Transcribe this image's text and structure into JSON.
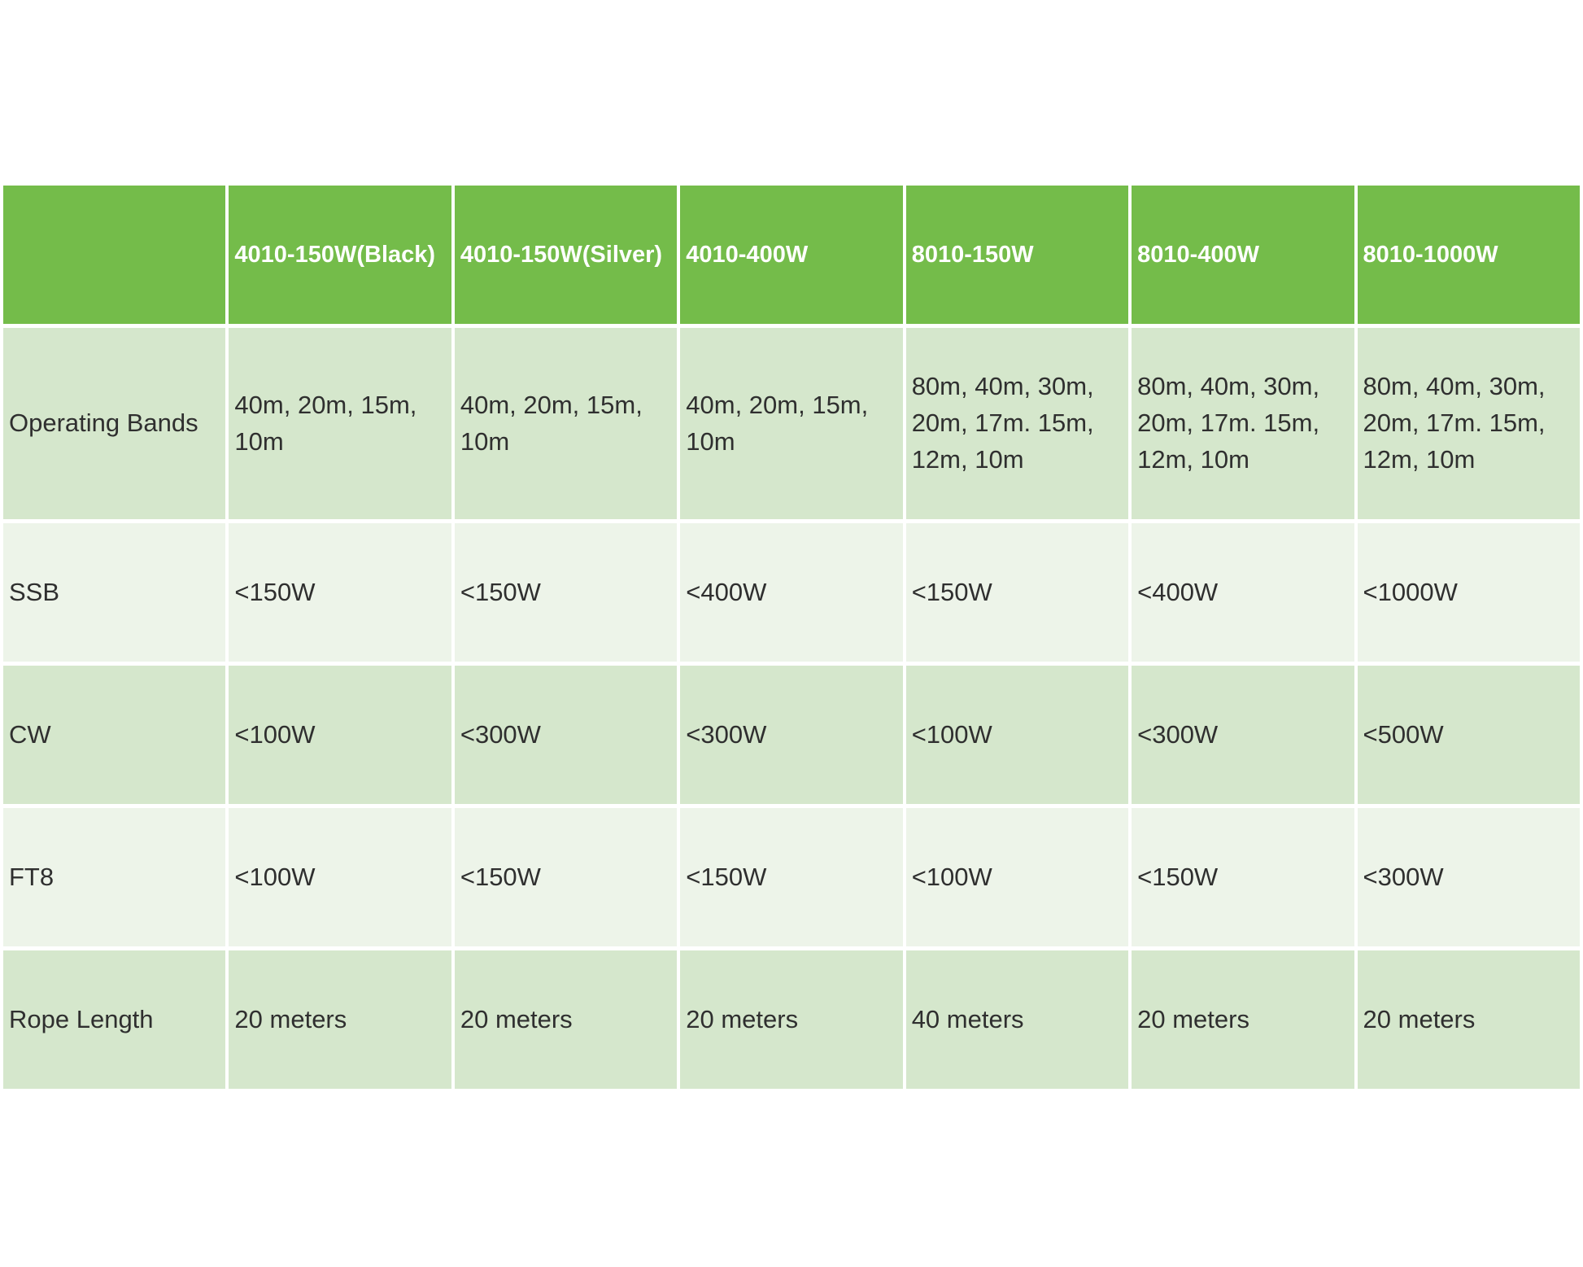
{
  "table": {
    "columns": [
      "",
      "4010-150W(Black)",
      "4010-150W(Silver)",
      "4010-400W",
      "8010-150W",
      "8010-400W",
      "8010-1000W"
    ],
    "rows": [
      {
        "label": "Operating Bands",
        "values": [
          "40m, 20m, 15m, 10m",
          "40m, 20m, 15m, 10m",
          "40m, 20m, 15m, 10m",
          "80m, 40m, 30m, 20m, 17m. 15m, 12m, 10m",
          "80m, 40m, 30m, 20m, 17m. 15m, 12m, 10m",
          "80m, 40m, 30m, 20m, 17m. 15m, 12m, 10m"
        ]
      },
      {
        "label": "SSB",
        "values": [
          "<150W",
          "<150W",
          "<400W",
          "<150W",
          "<400W",
          "<1000W"
        ]
      },
      {
        "label": "CW",
        "values": [
          "<100W",
          "<300W",
          "<300W",
          "<100W",
          "<300W",
          "<500W"
        ]
      },
      {
        "label": "FT8",
        "values": [
          "<100W",
          "<150W",
          "<150W",
          "<100W",
          "<150W",
          "<300W"
        ]
      },
      {
        "label": "Rope Length",
        "values": [
          "20 meters",
          "20 meters",
          "20 meters",
          "40 meters",
          "20 meters",
          "20 meters"
        ]
      }
    ],
    "colors": {
      "header_bg": "#74bc4a",
      "header_text": "#ffffff",
      "row_alt1": "#d5e7cc",
      "row_alt2": "#edf4e9",
      "body_text": "#2f2f2f"
    }
  }
}
